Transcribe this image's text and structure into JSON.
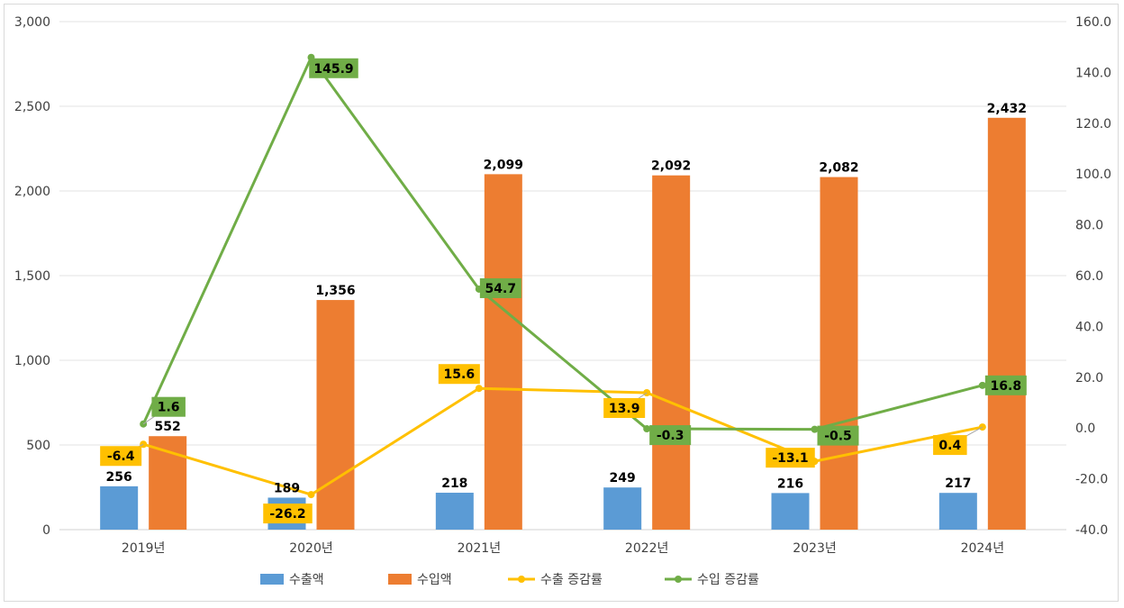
{
  "chart_data": {
    "type": "bar",
    "categories": [
      "2019년",
      "2020년",
      "2021년",
      "2022년",
      "2023년",
      "2024년"
    ],
    "series": [
      {
        "name": "수출액",
        "kind": "bar",
        "axis": "left",
        "color": "#5b9bd5",
        "values": [
          256,
          189,
          218,
          249,
          216,
          217
        ],
        "labels": [
          "256",
          "189",
          "218",
          "249",
          "216",
          "217"
        ]
      },
      {
        "name": "수입액",
        "kind": "bar",
        "axis": "left",
        "color": "#ed7d31",
        "values": [
          552,
          1356,
          2099,
          2092,
          2082,
          2432
        ],
        "labels": [
          "552",
          "1,356",
          "2,099",
          "2,092",
          "2,082",
          "2,432"
        ]
      },
      {
        "name": "수출 증감률",
        "kind": "line",
        "axis": "right",
        "color": "#ffc000",
        "values": [
          -6.4,
          -26.2,
          15.6,
          13.9,
          -13.1,
          0.4
        ],
        "labels": [
          "-6.4",
          "-26.2",
          "15.6",
          "13.9",
          "-13.1",
          "0.4"
        ]
      },
      {
        "name": "수입 증감률",
        "kind": "line",
        "axis": "right",
        "color": "#70ad47",
        "values": [
          1.6,
          145.9,
          54.7,
          -0.3,
          -0.5,
          16.8
        ],
        "labels": [
          "1.6",
          "145.9",
          "54.7",
          "-0.3",
          "-0.5",
          "16.8"
        ]
      }
    ],
    "y_left": {
      "range": [
        0,
        3000
      ],
      "ticks": [
        "0",
        "500",
        "1,000",
        "1,500",
        "2,000",
        "2,500",
        "3,000"
      ]
    },
    "y_right": {
      "range": [
        -40,
        160
      ],
      "ticks": [
        "-40.0",
        "-20.0",
        "0.0",
        "20.0",
        "40.0",
        "60.0",
        "80.0",
        "100.0",
        "120.0",
        "140.0",
        "160.0"
      ]
    },
    "legend": [
      "수출액",
      "수입액",
      "수출 증감률",
      "수입 증감률"
    ],
    "legend_position": "bottom",
    "grid": true
  }
}
